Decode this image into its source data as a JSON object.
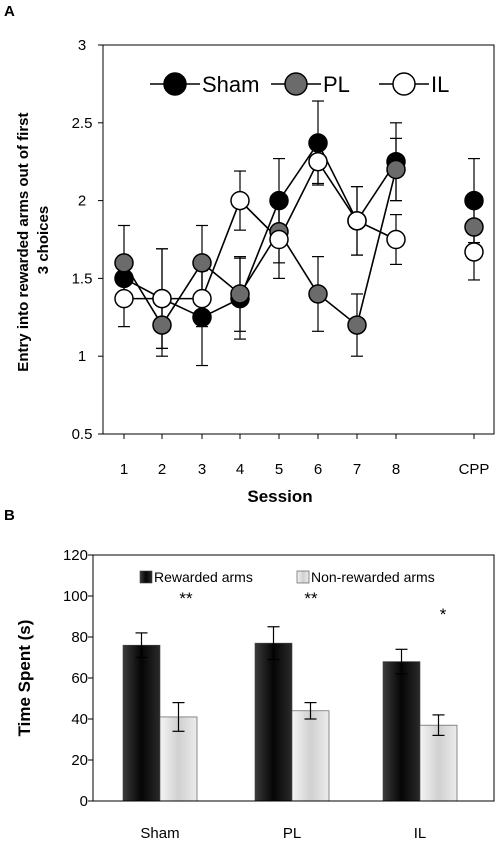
{
  "panel_labels": [
    "A",
    "B"
  ],
  "chart_data": [
    {
      "type": "line",
      "categories": [
        "1",
        "2",
        "3",
        "4",
        "5",
        "6",
        "7",
        "8",
        "CPP"
      ],
      "xlabel": "Session",
      "ylabel_lines": [
        "Entry into rewarded arms out of first",
        "3 choices"
      ],
      "ylim": [
        0.5,
        3
      ],
      "yticks": [
        "0.5",
        "1",
        "1.5",
        "2",
        "2.5",
        "3"
      ],
      "legend_placement": "top-left",
      "grid": false,
      "series": [
        {
          "name": "Sham",
          "color": "#000000",
          "marker_fill": "#000000",
          "values": [
            1.5,
            1.37,
            1.25,
            1.37,
            2.0,
            2.37,
            1.87,
            2.25,
            2.0
          ],
          "errors": [
            0.12,
            0.32,
            0.31,
            0.26,
            0.27,
            0.27,
            0.22,
            0.25,
            0.27
          ]
        },
        {
          "name": "PL",
          "color": "#000000",
          "marker_fill": "#6b6b6b",
          "values": [
            1.6,
            1.2,
            1.6,
            1.4,
            1.8,
            1.4,
            1.2,
            2.2,
            1.83
          ],
          "errors": [
            0.24,
            0.2,
            0.24,
            0.24,
            0.2,
            0.24,
            0.2,
            0.2,
            0.17
          ]
        },
        {
          "name": "IL",
          "color": "#000000",
          "marker_fill": "#ffffff",
          "values": [
            1.37,
            1.37,
            1.37,
            2.0,
            1.75,
            2.25,
            1.87,
            1.75,
            1.67
          ],
          "errors": [
            0.18,
            0.32,
            0.18,
            0.19,
            0.25,
            0.14,
            0.22,
            0.16,
            0.18
          ]
        }
      ]
    },
    {
      "type": "bar",
      "categories": [
        "Sham",
        "PL",
        "IL"
      ],
      "xlabel": "",
      "ylabel": "Time Spent (s)",
      "ylim": [
        0,
        120
      ],
      "yticks": [
        "0",
        "20",
        "40",
        "60",
        "80",
        "100",
        "120"
      ],
      "legend_placement": "top",
      "grid": false,
      "series": [
        {
          "name": "Rewarded arms",
          "color": "#111111",
          "values": [
            76,
            77,
            68
          ],
          "errors": [
            6,
            8,
            6
          ]
        },
        {
          "name": "Non-rewarded arms",
          "color": "#e2e2e2",
          "values": [
            41,
            44,
            37
          ],
          "errors": [
            7,
            4,
            5
          ]
        }
      ],
      "annotations": [
        "**",
        "**",
        "*"
      ]
    }
  ]
}
